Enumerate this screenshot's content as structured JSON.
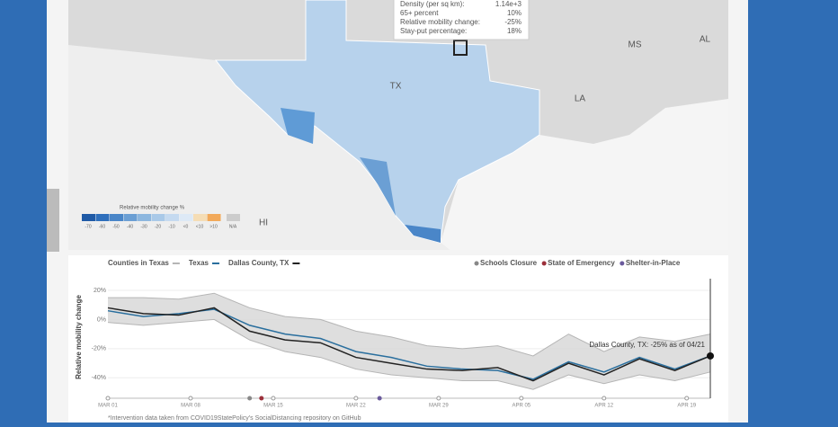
{
  "map": {
    "state_labels": [
      "MS",
      "AL",
      "LA",
      "TX",
      "HI"
    ],
    "tooltip": {
      "rows": [
        [
          "Density (per sq km):",
          "1.14e+3"
        ],
        [
          "65+ percent",
          "10%"
        ],
        [
          "Relative mobility change:",
          "-25%"
        ],
        [
          "Stay-put percentage:",
          "18%"
        ]
      ]
    },
    "legend": {
      "title": "Relative mobility change %",
      "items": [
        {
          "label": "-70",
          "color": "#1f5aa6"
        },
        {
          "label": "-60",
          "color": "#2e6fbc"
        },
        {
          "label": "-50",
          "color": "#4a86c8"
        },
        {
          "label": "-40",
          "color": "#6b9fd4"
        },
        {
          "label": "-30",
          "color": "#8db7df"
        },
        {
          "label": "-20",
          "color": "#a9c9e8"
        },
        {
          "label": "-10",
          "color": "#c5daf0"
        },
        {
          "label": "<0",
          "color": "#dde9f6"
        },
        {
          "label": "<10",
          "color": "#f5ddb5"
        },
        {
          "label": ">10",
          "color": "#f2a95a"
        },
        {
          "label": "N/A",
          "color": "#cccccc"
        }
      ]
    }
  },
  "chart_data": {
    "type": "line",
    "y_label": "Relative mobility change",
    "x": [
      0,
      3,
      6,
      9,
      12,
      15,
      18,
      21,
      24,
      27,
      30,
      33,
      36,
      39,
      42,
      45,
      48,
      51
    ],
    "xlim": [
      0,
      51
    ],
    "xticks": [
      {
        "value": 0,
        "label": "MAR 01"
      },
      {
        "value": 7,
        "label": "MAR 08"
      },
      {
        "value": 14,
        "label": "MAR 15"
      },
      {
        "value": 21,
        "label": "MAR 22"
      },
      {
        "value": 28,
        "label": "MAR 29"
      },
      {
        "value": 35,
        "label": "APR 05"
      },
      {
        "value": 42,
        "label": "APR 12"
      },
      {
        "value": 49,
        "label": "APR 19"
      }
    ],
    "ylim": [
      -54,
      28
    ],
    "yticks": [
      {
        "value": 20,
        "label": "20%"
      },
      {
        "value": 0,
        "label": "0%"
      },
      {
        "value": -20,
        "label": "-20%"
      },
      {
        "value": -40,
        "label": "-40%"
      }
    ],
    "series": [
      {
        "name": "Counties in Texas",
        "color": "#b5b5b5",
        "values": [
          15,
          15,
          14,
          18,
          8,
          2,
          0,
          -8,
          -12,
          -18,
          -20,
          -18,
          -25,
          -10,
          -22,
          -12,
          -15,
          -10
        ],
        "low": [
          -2,
          -4,
          -2,
          0,
          -14,
          -22,
          -26,
          -34,
          -38,
          -40,
          -42,
          -42,
          -48,
          -38,
          -44,
          -38,
          -42,
          -36
        ]
      },
      {
        "name": "Texas",
        "color": "#2a6f9e",
        "values": [
          6,
          2,
          4,
          7,
          -4,
          -10,
          -13,
          -22,
          -26,
          -32,
          -34,
          -35,
          -41,
          -29,
          -36,
          -26,
          -34,
          -25
        ]
      },
      {
        "name": "Dallas County, TX",
        "color": "#222222",
        "values": [
          8,
          4,
          3,
          8,
          -8,
          -14,
          -16,
          -26,
          -30,
          -34,
          -35,
          -33,
          -42,
          -30,
          -38,
          -27,
          -35,
          -25
        ]
      }
    ],
    "events": [
      {
        "name": "Schools Closure",
        "color": "#888888",
        "x": 12
      },
      {
        "name": "State of Emergency",
        "color": "#9b2f3a",
        "x": 13
      },
      {
        "name": "Shelter-in-Place",
        "color": "#6a5a9c",
        "x": 23
      }
    ],
    "annotation": "Dallas County, TX: -25% as of 04/21",
    "footnote": "*Intervention data taken from COVID19StatePolicy's SocialDistancing repository on GitHub"
  }
}
